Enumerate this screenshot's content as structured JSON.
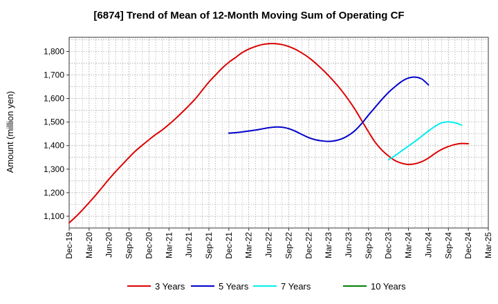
{
  "chart_data": {
    "type": "line",
    "title": "[6874]  Trend of Mean of 12-Month Moving Sum of Operating CF",
    "xlabel": "",
    "ylabel": "Amount (million yen)",
    "ylim": [
      1050,
      1860
    ],
    "yticks": [
      1100,
      1200,
      1300,
      1400,
      1500,
      1600,
      1700,
      1800
    ],
    "ytick_labels": [
      "1,100",
      "1,200",
      "1,300",
      "1,400",
      "1,500",
      "1,600",
      "1,700",
      "1,800"
    ],
    "x_tick_labels": [
      "Dec-19",
      "Mar-20",
      "Jun-20",
      "Sep-20",
      "Dec-20",
      "Mar-21",
      "Jun-21",
      "Sep-21",
      "Dec-21",
      "Mar-22",
      "Jun-22",
      "Sep-22",
      "Dec-22",
      "Mar-23",
      "Jun-23",
      "Sep-23",
      "Dec-23",
      "Mar-24",
      "Jun-24",
      "Sep-24",
      "Dec-24",
      "Mar-25"
    ],
    "grid": true,
    "legend_position": "bottom",
    "series": [
      {
        "name": "3 Years",
        "color": "#dd0000",
        "start_index": 0,
        "values": [
          1072,
          1098,
          1127,
          1158,
          1190,
          1224,
          1258,
          1290,
          1320,
          1350,
          1378,
          1402,
          1425,
          1447,
          1467,
          1490,
          1515,
          1542,
          1570,
          1600,
          1635,
          1670,
          1700,
          1729,
          1754,
          1774,
          1795,
          1810,
          1821,
          1829,
          1833,
          1833,
          1829,
          1821,
          1809,
          1793,
          1774,
          1751,
          1725,
          1697,
          1666,
          1632,
          1594,
          1552,
          1505,
          1458,
          1414,
          1381,
          1356,
          1336,
          1325,
          1320,
          1323,
          1332,
          1347,
          1367,
          1384,
          1396,
          1405,
          1409,
          1408
        ]
      },
      {
        "name": "5 Years",
        "color": "#0000cc",
        "start_index": 24,
        "values": [
          1453,
          1455,
          1458,
          1462,
          1466,
          1471,
          1476,
          1479,
          1478,
          1472,
          1461,
          1447,
          1434,
          1425,
          1420,
          1418,
          1421,
          1429,
          1444,
          1465,
          1495,
          1530,
          1563,
          1596,
          1626,
          1651,
          1673,
          1687,
          1691,
          1683,
          1658
        ]
      },
      {
        "name": "7 Years",
        "color": "#00eeee",
        "start_index": 48,
        "values": [
          1340,
          1358,
          1378,
          1398,
          1418,
          1440,
          1462,
          1482,
          1497,
          1501,
          1497,
          1487
        ]
      },
      {
        "name": "10 Years",
        "color": "#008000",
        "start_index": 0,
        "values": []
      }
    ]
  }
}
